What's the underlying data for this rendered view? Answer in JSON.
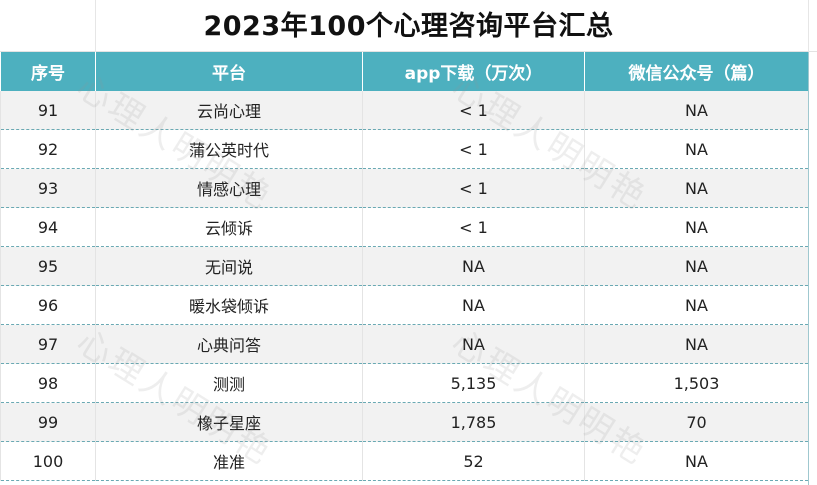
{
  "title": "2023年100个心理咨询平台汇总",
  "headers": [
    "序号",
    "平台",
    "app下载（万次）",
    "微信公众号（篇）"
  ],
  "rows": [
    {
      "no": "91",
      "platform": "云尚心理",
      "app": "< 1",
      "wechat": "NA"
    },
    {
      "no": "92",
      "platform": "蒲公英时代",
      "app": "< 1",
      "wechat": "NA"
    },
    {
      "no": "93",
      "platform": "情感心理",
      "app": "< 1",
      "wechat": "NA"
    },
    {
      "no": "94",
      "platform": "云倾诉",
      "app": "< 1",
      "wechat": "NA"
    },
    {
      "no": "95",
      "platform": "无间说",
      "app": "NA",
      "wechat": "NA"
    },
    {
      "no": "96",
      "platform": "暖水袋倾诉",
      "app": "NA",
      "wechat": "NA"
    },
    {
      "no": "97",
      "platform": "心典问答",
      "app": "NA",
      "wechat": "NA"
    },
    {
      "no": "98",
      "platform": "测测",
      "app": "5,135",
      "wechat": "1,503"
    },
    {
      "no": "99",
      "platform": "橡子星座",
      "app": "1,785",
      "wechat": "70"
    },
    {
      "no": "100",
      "platform": "准准",
      "app": "52",
      "wechat": "NA"
    }
  ],
  "watermark": "心理人明明艳"
}
